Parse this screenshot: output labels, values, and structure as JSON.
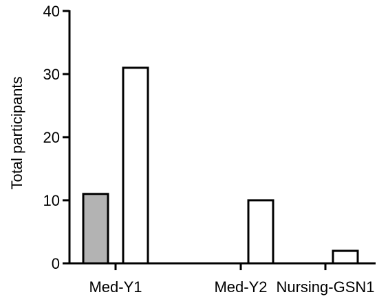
{
  "chart_data": {
    "type": "bar",
    "categories": [
      "Med-Y1",
      "Med-Y2",
      "Nursing-GSN1"
    ],
    "series": [
      {
        "values": [
          11,
          0,
          0
        ],
        "color": "#b3b3b3"
      },
      {
        "values": [
          31,
          10,
          2
        ],
        "color": "#ffffff"
      }
    ],
    "title": "",
    "xlabel": "",
    "ylabel": "Total participants",
    "ylim": [
      0,
      40
    ],
    "yticks": [
      0,
      10,
      20,
      30,
      40
    ],
    "grid": false,
    "legend": "none"
  }
}
